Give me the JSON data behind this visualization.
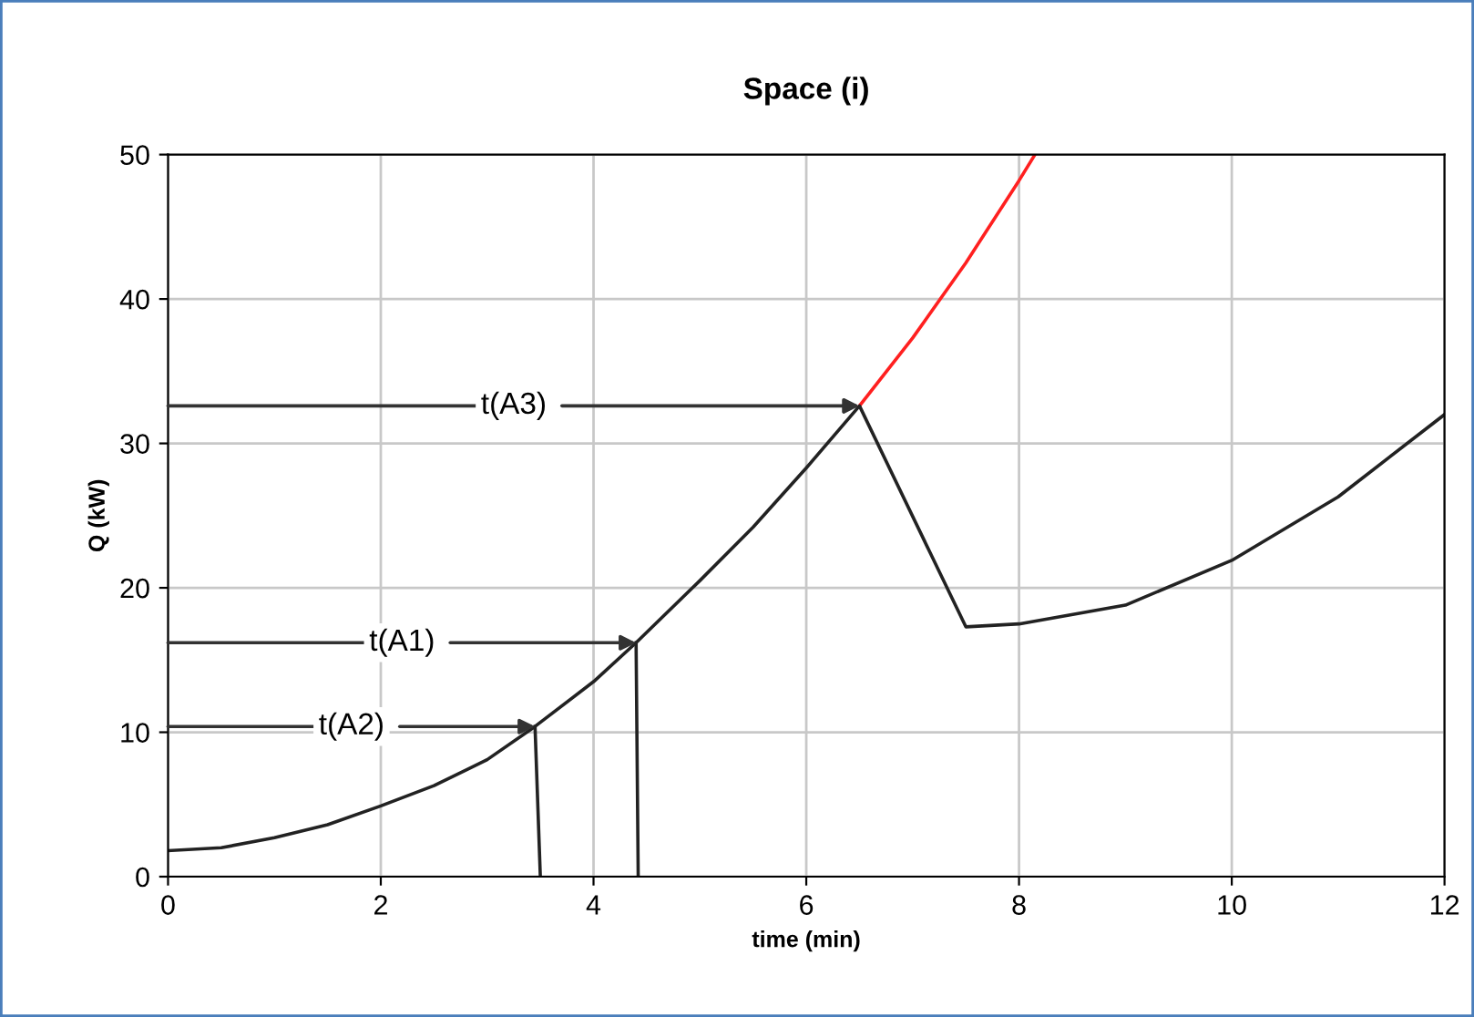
{
  "chart_data": {
    "type": "line",
    "title": "Space (i)",
    "xlabel": "time (min)",
    "ylabel": "Q (kW)",
    "series": [
      {
        "color": "#ff2020",
        "x": [
          6.5,
          7,
          7.5,
          8,
          8.15
        ],
        "values": [
          32.6,
          37.3,
          42.5,
          48.2,
          50
        ]
      },
      {
        "color": "#222222",
        "x": [
          3.45,
          3.5
        ],
        "values": [
          10.4,
          0
        ]
      },
      {
        "color": "#222222",
        "x": [
          4.4,
          4.42
        ],
        "values": [
          16.2,
          0
        ]
      },
      {
        "color": "#222222",
        "x": [
          0,
          0.5,
          1,
          1.5,
          2,
          2.5,
          3,
          3.45,
          4,
          4.4,
          5,
          5.5,
          6,
          6.5,
          7.5,
          8,
          9,
          10,
          11,
          12
        ],
        "values": [
          1.8,
          2.0,
          2.7,
          3.6,
          4.9,
          6.3,
          8.1,
          10.4,
          13.5,
          16.2,
          20.5,
          24.2,
          28.3,
          32.6,
          17.3,
          17.5,
          18.8,
          21.9,
          26.3,
          32
        ]
      }
    ],
    "annotations": [
      {
        "text": "t(A3)",
        "x": 6.5,
        "y": 32.6
      },
      {
        "text": "t(A1)",
        "x": 4.4,
        "y": 16.2
      },
      {
        "text": "t(A2)",
        "x": 3.45,
        "y": 10.4
      }
    ],
    "xlim": [
      0,
      12
    ],
    "xticks": [
      0,
      2,
      4,
      6,
      8,
      10,
      12
    ],
    "ylim": [
      0,
      50
    ],
    "yticks": [
      0,
      10,
      20,
      30,
      40,
      50
    ],
    "grid": true,
    "marker": "none",
    "line_style": "solid"
  }
}
